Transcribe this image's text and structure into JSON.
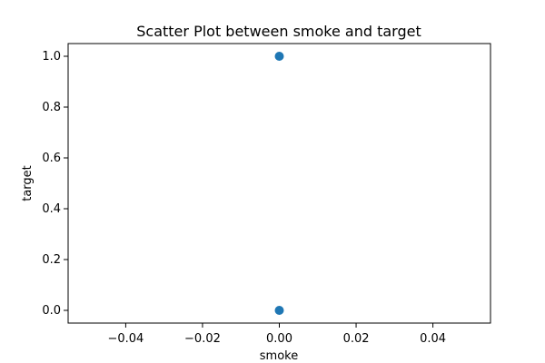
{
  "chart_data": {
    "type": "scatter",
    "title": "Scatter Plot between smoke and target",
    "xlabel": "smoke",
    "ylabel": "target",
    "xlim": [
      -0.055,
      0.055
    ],
    "ylim": [
      -0.05,
      1.05
    ],
    "x_ticks": [
      -0.04,
      -0.02,
      0.0,
      0.02,
      0.04
    ],
    "x_tick_labels": [
      "−0.04",
      "−0.02",
      "0.00",
      "0.02",
      "0.04"
    ],
    "y_ticks": [
      0.0,
      0.2,
      0.4,
      0.6,
      0.8,
      1.0
    ],
    "y_tick_labels": [
      "0.0",
      "0.2",
      "0.4",
      "0.6",
      "0.8",
      "1.0"
    ],
    "grid": false,
    "series": [
      {
        "color": "#1f77b4",
        "points": [
          {
            "x": 0.0,
            "y": 1.0
          },
          {
            "x": 0.0,
            "y": 0.0
          }
        ]
      }
    ]
  }
}
